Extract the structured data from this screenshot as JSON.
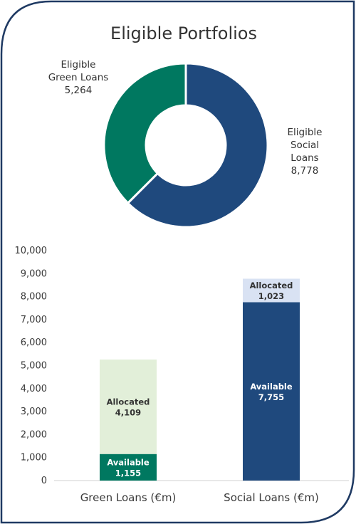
{
  "colors": {
    "frame": "#1f3a63",
    "green_dark": "#007860",
    "green_light": "#e2efd9",
    "navy": "#1f497d",
    "navy_light": "#d9e2f3"
  },
  "chart_data": [
    {
      "type": "pie",
      "title": "Eligible Portfolios",
      "hole": true,
      "slices": [
        {
          "name": "Eligible Green Loans",
          "lines": [
            "Eligible",
            "Green Loans"
          ],
          "value": 5264,
          "value_label": "5,264",
          "color": "#007860"
        },
        {
          "name": "Eligible Social Loans",
          "lines": [
            "Eligible",
            "Social",
            "Loans"
          ],
          "value": 8778,
          "value_label": "8,778",
          "color": "#1f497d"
        }
      ]
    },
    {
      "type": "bar",
      "stacked": true,
      "categories": [
        "Green Loans (€m)",
        "Social Loans (€m)"
      ],
      "ylim": [
        0,
        10000
      ],
      "yticks": [
        {
          "v": 0,
          "label": "0"
        },
        {
          "v": 1000,
          "label": "1,000"
        },
        {
          "v": 2000,
          "label": "2,000"
        },
        {
          "v": 3000,
          "label": "3,000"
        },
        {
          "v": 4000,
          "label": "4,000"
        },
        {
          "v": 5000,
          "label": "5,000"
        },
        {
          "v": 6000,
          "label": "6,000"
        },
        {
          "v": 7000,
          "label": "7,000"
        },
        {
          "v": 8000,
          "label": "8,000"
        },
        {
          "v": 9000,
          "label": "9,000"
        },
        {
          "v": 10000,
          "label": "10,000"
        }
      ],
      "grid": false,
      "stacks": [
        [
          {
            "name": "Available",
            "value": 1155,
            "value_label": "1,155",
            "color": "#007860",
            "text_color": "#ffffff"
          },
          {
            "name": "Allocated",
            "value": 4109,
            "value_label": "4,109",
            "color": "#e2efd9",
            "text_color": "#333333"
          }
        ],
        [
          {
            "name": "Available",
            "value": 7755,
            "value_label": "7,755",
            "color": "#1f497d",
            "text_color": "#ffffff"
          },
          {
            "name": "Allocated",
            "value": 1023,
            "value_label": "1,023",
            "color": "#d9e2f3",
            "text_color": "#333333"
          }
        ]
      ]
    }
  ]
}
